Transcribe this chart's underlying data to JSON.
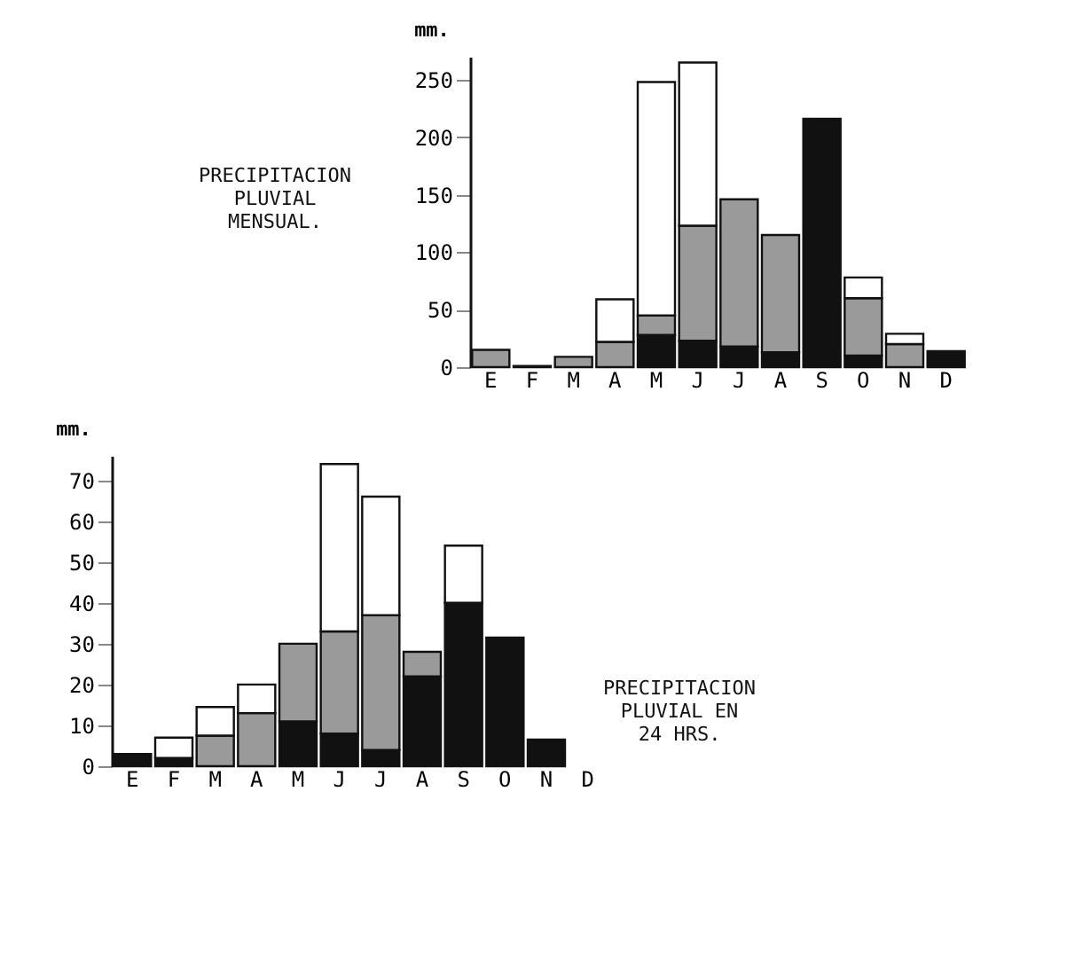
{
  "chart_data": [
    {
      "type": "bar",
      "title": "PRECIPITACION\nPLUVIAL\nMENSUAL.",
      "ylabel": "mm.",
      "stacked": true,
      "categories": [
        "E",
        "F",
        "M",
        "A",
        "M",
        "J",
        "J",
        "A",
        "S",
        "O",
        "N",
        "D"
      ],
      "ylim": [
        0,
        270
      ],
      "yticks": [
        0,
        50,
        100,
        150,
        200,
        250
      ],
      "series": [
        {
          "color": "#111111",
          "values": [
            null,
            1,
            null,
            null,
            28,
            23,
            18,
            13,
            216,
            10,
            null,
            14
          ]
        },
        {
          "color": "#9a9a9a",
          "values": [
            15,
            null,
            9,
            22,
            17,
            100,
            128,
            102,
            null,
            50,
            20,
            null
          ]
        },
        {
          "color": "#ffffff",
          "values": [
            null,
            null,
            null,
            37,
            203,
            142,
            null,
            null,
            null,
            18,
            9,
            null
          ]
        }
      ]
    },
    {
      "type": "bar",
      "title": "PRECIPITACION\nPLUVIAL EN\n24 HRS.",
      "ylabel": "mm.",
      "stacked": true,
      "categories": [
        "E",
        "F",
        "M",
        "A",
        "M",
        "J",
        "J",
        "A",
        "S",
        "O",
        "N",
        "D"
      ],
      "ylim": [
        0,
        76
      ],
      "yticks": [
        0,
        10,
        20,
        30,
        40,
        50,
        60,
        70
      ],
      "series": [
        {
          "color": "#111111",
          "values": [
            3,
            2,
            null,
            null,
            11,
            8,
            4,
            22,
            40,
            31.5,
            6.5,
            null
          ]
        },
        {
          "color": "#9a9a9a",
          "values": [
            null,
            null,
            7.5,
            13,
            19,
            25,
            33,
            6,
            null,
            null,
            null,
            null
          ]
        },
        {
          "color": "#ffffff",
          "values": [
            null,
            5,
            7,
            7,
            null,
            41,
            29,
            null,
            14,
            null,
            null,
            null
          ]
        }
      ]
    }
  ]
}
